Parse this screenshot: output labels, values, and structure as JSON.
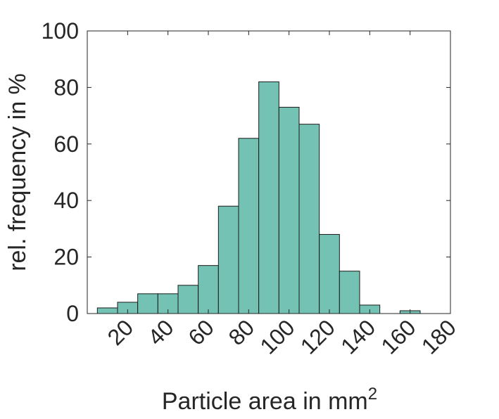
{
  "chart_data": {
    "type": "bar",
    "title": "",
    "xlabel": "Particle area in mm",
    "xlabel_superscript": "2",
    "ylabel": "rel. frequency in %",
    "xlim": [
      0,
      180
    ],
    "ylim": [
      0,
      100
    ],
    "bin_width": 10,
    "bins": [
      {
        "x": 10,
        "value": 2
      },
      {
        "x": 20,
        "value": 4
      },
      {
        "x": 30,
        "value": 7
      },
      {
        "x": 40,
        "value": 7
      },
      {
        "x": 50,
        "value": 10
      },
      {
        "x": 60,
        "value": 17
      },
      {
        "x": 70,
        "value": 38
      },
      {
        "x": 80,
        "value": 62
      },
      {
        "x": 90,
        "value": 82
      },
      {
        "x": 100,
        "value": 73
      },
      {
        "x": 110,
        "value": 67
      },
      {
        "x": 120,
        "value": 28
      },
      {
        "x": 130,
        "value": 15
      },
      {
        "x": 140,
        "value": 3
      },
      {
        "x": 160,
        "value": 1
      }
    ],
    "x_ticks": [
      20,
      40,
      60,
      80,
      100,
      120,
      140,
      160,
      180
    ],
    "y_ticks": [
      0,
      20,
      40,
      60,
      80,
      100
    ],
    "grid": false,
    "colors": {
      "bar_fill": "#74c2b3",
      "bar_edge": "#1a1a1a",
      "axis": "#262626"
    }
  }
}
